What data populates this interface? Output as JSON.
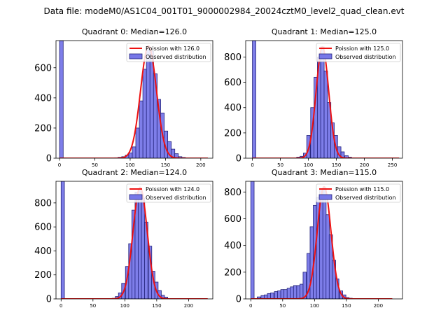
{
  "figure_title": "Data file: modeM0/AS1C04_001T01_9000002984_20024cztM0_level2_quad_clean.evt",
  "colors": {
    "bar_fill": "#7777e8",
    "bar_edge": "#22227a",
    "curve": "#ee1111"
  },
  "chart_data": [
    {
      "type": "bar",
      "title": "Quadrant 0: Median=126.0",
      "legend": [
        "Poission with 126.0",
        "Observed distribution"
      ],
      "legend_position": "top-right",
      "xlim": [
        -5,
        217
      ],
      "ylim": [
        0,
        780
      ],
      "xticks": [
        0,
        50,
        100,
        150,
        200
      ],
      "yticks": [
        0,
        200,
        400,
        600
      ],
      "bin_width": 5.2,
      "zero_bin_value": 780,
      "bins": [
        [
          78,
          3
        ],
        [
          83,
          6
        ],
        [
          88,
          10
        ],
        [
          93,
          20
        ],
        [
          98,
          35
        ],
        [
          103,
          75
        ],
        [
          108,
          200
        ],
        [
          113,
          380
        ],
        [
          118,
          590
        ],
        [
          123,
          720
        ],
        [
          128,
          710
        ],
        [
          133,
          560
        ],
        [
          138,
          390
        ],
        [
          143,
          300
        ],
        [
          148,
          180
        ],
        [
          153,
          110
        ],
        [
          158,
          60
        ],
        [
          163,
          30
        ],
        [
          168,
          10
        ],
        [
          173,
          5
        ]
      ],
      "poisson_mean": 126.0,
      "poisson_peak": 745,
      "curve_x": [
        0,
        210
      ]
    },
    {
      "type": "bar",
      "title": "Quadrant 1: Median=125.0",
      "legend": [
        "Poission with 125.0",
        "Observed distribution"
      ],
      "legend_position": "top-right",
      "xlim": [
        -12,
        268
      ],
      "ylim": [
        0,
        930
      ],
      "xticks": [
        0,
        50,
        100,
        150,
        200,
        250
      ],
      "yticks": [
        0,
        200,
        400,
        600,
        800
      ],
      "bin_width": 6.1,
      "zero_bin_value": 930,
      "bins": [
        [
          73,
          3
        ],
        [
          79,
          8
        ],
        [
          85,
          15
        ],
        [
          91,
          40
        ],
        [
          97,
          180
        ],
        [
          104,
          400
        ],
        [
          110,
          640
        ],
        [
          116,
          800
        ],
        [
          122,
          880
        ],
        [
          128,
          690
        ],
        [
          134,
          440
        ],
        [
          140,
          280
        ],
        [
          146,
          180
        ],
        [
          152,
          90
        ],
        [
          158,
          50
        ],
        [
          165,
          20
        ],
        [
          171,
          8
        ],
        [
          177,
          3
        ]
      ],
      "poisson_mean": 125.0,
      "poisson_peak": 880,
      "curve_x": [
        0,
        262
      ]
    },
    {
      "type": "bar",
      "title": "Quadrant 2: Median=124.0",
      "legend": [
        "Poission with 124.0",
        "Observed distribution"
      ],
      "legend_position": "top-right",
      "xlim": [
        -8,
        238
      ],
      "ylim": [
        0,
        980
      ],
      "xticks": [
        0,
        50,
        100,
        150,
        200
      ],
      "yticks": [
        0,
        200,
        400,
        600,
        800
      ],
      "bin_width": 5.2,
      "zero_bin_value": 980,
      "bins": [
        [
          80,
          5
        ],
        [
          85,
          20
        ],
        [
          90,
          50
        ],
        [
          95,
          130
        ],
        [
          101,
          270
        ],
        [
          106,
          460
        ],
        [
          111,
          740
        ],
        [
          116,
          890
        ],
        [
          121,
          900
        ],
        [
          126,
          840
        ],
        [
          131,
          640
        ],
        [
          137,
          440
        ],
        [
          142,
          230
        ],
        [
          147,
          140
        ],
        [
          152,
          70
        ],
        [
          157,
          30
        ],
        [
          162,
          15
        ]
      ],
      "poisson_mean": 124.0,
      "poisson_peak": 930,
      "curve_x": [
        0,
        230
      ]
    },
    {
      "type": "bar",
      "title": "Quadrant 3: Median=115.0",
      "legend": [
        "Poission with 115.0",
        "Observed distribution"
      ],
      "legend_position": "top-right",
      "xlim": [
        -8,
        238
      ],
      "ylim": [
        0,
        880
      ],
      "xticks": [
        0,
        50,
        100,
        150,
        200
      ],
      "yticks": [
        0,
        200,
        400,
        600,
        800
      ],
      "bin_width": 5.2,
      "zero_bin_value": 880,
      "bins": [
        [
          10,
          15
        ],
        [
          16,
          25
        ],
        [
          21,
          30
        ],
        [
          26,
          40
        ],
        [
          31,
          45
        ],
        [
          37,
          55
        ],
        [
          42,
          60
        ],
        [
          47,
          70
        ],
        [
          52,
          70
        ],
        [
          57,
          80
        ],
        [
          62,
          90
        ],
        [
          67,
          100
        ],
        [
          72,
          100
        ],
        [
          77,
          110
        ],
        [
          82,
          200
        ],
        [
          88,
          340
        ],
        [
          93,
          540
        ],
        [
          98,
          700
        ],
        [
          103,
          760
        ],
        [
          108,
          820
        ],
        [
          113,
          830
        ],
        [
          118,
          630
        ],
        [
          123,
          480
        ],
        [
          128,
          290
        ],
        [
          133,
          150
        ],
        [
          139,
          60
        ],
        [
          144,
          30
        ],
        [
          149,
          10
        ],
        [
          154,
          5
        ]
      ],
      "poisson_mean": 115.0,
      "poisson_peak": 840,
      "curve_x": [
        0,
        222
      ]
    }
  ]
}
